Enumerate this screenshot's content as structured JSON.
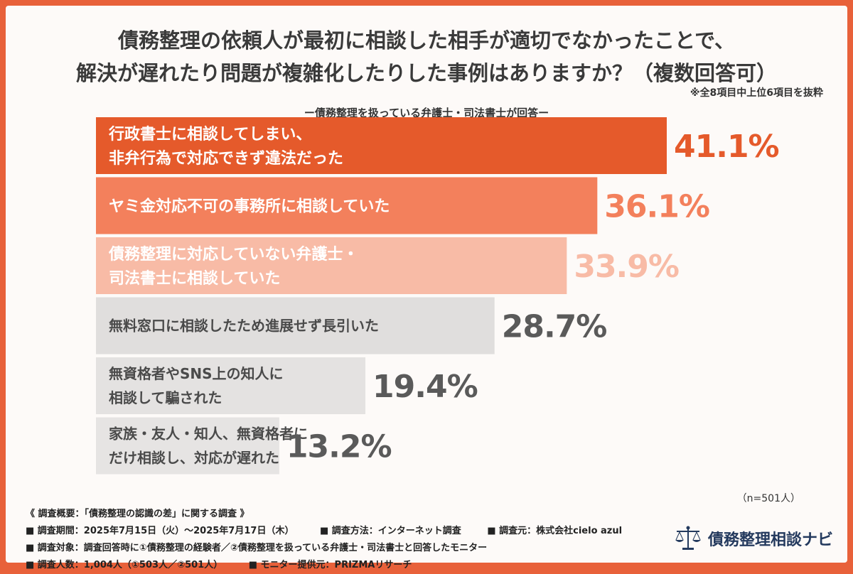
{
  "title_line1": "債務整理の依頼人が最初に相談した相手が適切でなかったことで、",
  "title_line2": "解決が遅れたり問題が複雑化したりした事例はありますか？（複数回答可）",
  "note": "※全8項目中上位6項目を抜粋",
  "subtitle": "ー債務整理を扱っている弁護士・司法書士が回答ー",
  "n_label": "（n=501人）",
  "chart_data": {
    "type": "bar",
    "orientation": "horizontal",
    "unit": "%",
    "categories": [
      [
        "行政書士に相談してしまい、",
        "非弁行為で対応できず違法だった"
      ],
      [
        "ヤミ金対応不可の事務所に相談していた"
      ],
      [
        "債務整理に対応していない弁護士・",
        "司法書士に相談していた"
      ],
      [
        "無料窓口に相談したため進展せず長引いた"
      ],
      [
        "無資格者やSNS上の知人に",
        "相談して騙された"
      ],
      [
        "家族・友人・知人、無資格者に",
        "だけ相談し、対応が遅れた"
      ]
    ],
    "values": [
      41.1,
      36.1,
      33.9,
      28.7,
      19.4,
      13.2
    ],
    "value_labels": [
      "41.1%",
      "36.1%",
      "33.9%",
      "28.7%",
      "19.4%",
      "13.2%"
    ],
    "bar_colors": [
      "#e55a2b",
      "#f3805c",
      "#f8bba6",
      "#e0dedd",
      "#e4e2e1",
      "#e6e4e3"
    ],
    "label_colors": [
      "#ffffff",
      "#ffffff",
      "#ffffff",
      "#4a4a4a",
      "#4a4a4a",
      "#4a4a4a"
    ],
    "value_colors": [
      "#e55a2b",
      "#f3805c",
      "#f8bba6",
      "#5a5a5a",
      "#5a5a5a",
      "#5a5a5a"
    ],
    "xlim": [
      0,
      41.1
    ]
  },
  "survey": {
    "heading": "《 調査概要：「債務整理の認識の差」に関する調査 》",
    "period": "■ 調査期間：2025年7月15日（火）～2025年7月17日（木）",
    "method": "■ 調査方法：インターネット調査",
    "source": "■ 調査元：株式会社cielo azul",
    "target": "■ 調査対象：調査回答時に①債務整理の経験者／②債務整理を扱っている弁護士・司法書士と回答したモニター",
    "count": "■ 調査人数：1,004人（①503人／②501人）",
    "provider": "■ モニター提供元：PRIZMAリサーチ"
  },
  "logo": {
    "text": "債務整理相談ナビ",
    "icon": "scales-of-justice-icon",
    "color": "#243a5e"
  }
}
